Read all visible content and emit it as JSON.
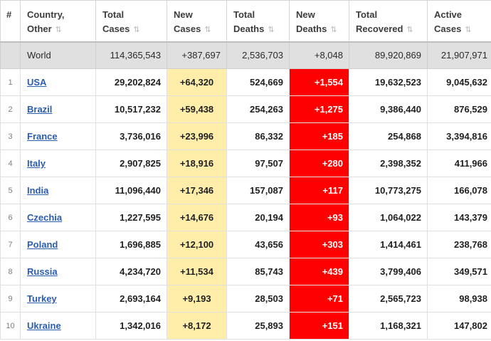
{
  "colors": {
    "link_blue": "#2a5db0",
    "new_cases_bg": "#ffeeaa",
    "new_deaths_bg": "#ff0000",
    "world_row_bg": "#e0e0e0"
  },
  "table": {
    "sort_icon": "⇅",
    "columns": [
      {
        "key": "rank",
        "label": "#",
        "sortable": false
      },
      {
        "key": "country",
        "label": "Country, Other",
        "sortable": true
      },
      {
        "key": "total_cases",
        "label": "Total Cases",
        "sortable": true
      },
      {
        "key": "new_cases",
        "label": "New Cases",
        "sortable": true
      },
      {
        "key": "total_deaths",
        "label": "Total Deaths",
        "sortable": true
      },
      {
        "key": "new_deaths",
        "label": "New Deaths",
        "sortable": true
      },
      {
        "key": "total_recovered",
        "label": "Total Recovered",
        "sortable": true
      },
      {
        "key": "active_cases",
        "label": "Active Cases",
        "sortable": true
      }
    ],
    "world_row": {
      "rank": "",
      "country": "World",
      "total_cases": "114,365,543",
      "new_cases": "+387,697",
      "total_deaths": "2,536,703",
      "new_deaths": "+8,048",
      "total_recovered": "89,920,869",
      "active_cases": "21,907,971"
    },
    "rows": [
      {
        "rank": "1",
        "country": "USA",
        "total_cases": "29,202,824",
        "new_cases": "+64,320",
        "total_deaths": "524,669",
        "new_deaths": "+1,554",
        "total_recovered": "19,632,523",
        "active_cases": "9,045,632"
      },
      {
        "rank": "2",
        "country": "Brazil",
        "total_cases": "10,517,232",
        "new_cases": "+59,438",
        "total_deaths": "254,263",
        "new_deaths": "+1,275",
        "total_recovered": "9,386,440",
        "active_cases": "876,529"
      },
      {
        "rank": "3",
        "country": "France",
        "total_cases": "3,736,016",
        "new_cases": "+23,996",
        "total_deaths": "86,332",
        "new_deaths": "+185",
        "total_recovered": "254,868",
        "active_cases": "3,394,816"
      },
      {
        "rank": "4",
        "country": "Italy",
        "total_cases": "2,907,825",
        "new_cases": "+18,916",
        "total_deaths": "97,507",
        "new_deaths": "+280",
        "total_recovered": "2,398,352",
        "active_cases": "411,966"
      },
      {
        "rank": "5",
        "country": "India",
        "total_cases": "11,096,440",
        "new_cases": "+17,346",
        "total_deaths": "157,087",
        "new_deaths": "+117",
        "total_recovered": "10,773,275",
        "active_cases": "166,078"
      },
      {
        "rank": "6",
        "country": "Czechia",
        "total_cases": "1,227,595",
        "new_cases": "+14,676",
        "total_deaths": "20,194",
        "new_deaths": "+93",
        "total_recovered": "1,064,022",
        "active_cases": "143,379"
      },
      {
        "rank": "7",
        "country": "Poland",
        "total_cases": "1,696,885",
        "new_cases": "+12,100",
        "total_deaths": "43,656",
        "new_deaths": "+303",
        "total_recovered": "1,414,461",
        "active_cases": "238,768"
      },
      {
        "rank": "8",
        "country": "Russia",
        "total_cases": "4,234,720",
        "new_cases": "+11,534",
        "total_deaths": "85,743",
        "new_deaths": "+439",
        "total_recovered": "3,799,406",
        "active_cases": "349,571"
      },
      {
        "rank": "9",
        "country": "Turkey",
        "total_cases": "2,693,164",
        "new_cases": "+9,193",
        "total_deaths": "28,503",
        "new_deaths": "+71",
        "total_recovered": "2,565,723",
        "active_cases": "98,938"
      },
      {
        "rank": "10",
        "country": "Ukraine",
        "total_cases": "1,342,016",
        "new_cases": "+8,172",
        "total_deaths": "25,893",
        "new_deaths": "+151",
        "total_recovered": "1,168,321",
        "active_cases": "147,802"
      }
    ]
  }
}
